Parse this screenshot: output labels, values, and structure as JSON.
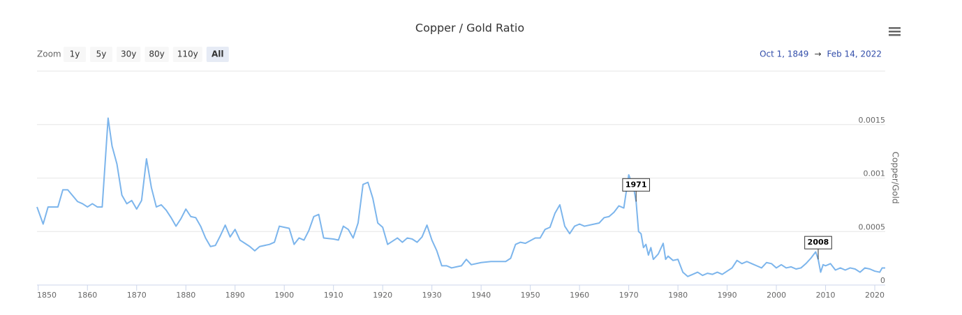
{
  "chart_data": {
    "type": "line",
    "title": "Copper / Gold Ratio",
    "zoom_label": "Zoom",
    "zoom_buttons": [
      "1y",
      "5y",
      "30y",
      "80y",
      "110y",
      "All"
    ],
    "zoom_selected": 5,
    "range_from": "Oct 1, 1849",
    "range_separator": "→",
    "range_to": "Feb 14, 2022",
    "y_axis_label": "Copper/Gold",
    "color": "#7cb5ec",
    "grid": true,
    "xlim": [
      1849.75,
      2022.12
    ],
    "xticks": [
      1850,
      1860,
      1870,
      1880,
      1890,
      1900,
      1910,
      1920,
      1930,
      1940,
      1950,
      1960,
      1970,
      1980,
      1990,
      2000,
      2010,
      2020
    ],
    "ylim": [
      0,
      0.002
    ],
    "yticks": [
      0,
      0.0005,
      0.001,
      0.0015
    ],
    "x": [
      1849.75,
      1851,
      1852,
      1854,
      1855,
      1856,
      1858,
      1859,
      1860,
      1861,
      1862,
      1863,
      1864.2,
      1865,
      1866,
      1867,
      1868,
      1869,
      1870,
      1871,
      1872,
      1873,
      1874,
      1875,
      1876,
      1877,
      1878,
      1879,
      1880,
      1881,
      1882,
      1883,
      1884,
      1885,
      1886,
      1887,
      1888,
      1889,
      1890,
      1891,
      1892,
      1893,
      1894,
      1895,
      1897,
      1898,
      1899,
      1900,
      1901,
      1902,
      1903,
      1904,
      1905,
      1906,
      1907,
      1908,
      1910,
      1911,
      1912,
      1913,
      1914,
      1915,
      1916,
      1917,
      1918,
      1919,
      1920,
      1921,
      1922,
      1923,
      1924,
      1925,
      1926,
      1927,
      1928,
      1929,
      1930,
      1931,
      1932,
      1933,
      1934,
      1935,
      1936,
      1937,
      1938,
      1940,
      1942,
      1945,
      1946,
      1947,
      1948,
      1949,
      1951,
      1952,
      1953,
      1954,
      1955,
      1956,
      1957,
      1958,
      1959,
      1960,
      1961,
      1963,
      1964,
      1965,
      1966,
      1967,
      1968,
      1969,
      1970,
      1971,
      1971.5,
      1972,
      1972.5,
      1973,
      1973.5,
      1974,
      1974.5,
      1975,
      1976,
      1977,
      1977.5,
      1978,
      1979,
      1980,
      1981,
      1982,
      1983,
      1984,
      1985,
      1986,
      1987,
      1988,
      1989,
      1991,
      1992,
      1993,
      1994,
      1995,
      1996,
      1997,
      1998,
      1999,
      2000,
      2001,
      2002,
      2003,
      2004,
      2005,
      2006,
      2007,
      2008,
      2008.5,
      2009,
      2009.5,
      2010,
      2011,
      2012,
      2013,
      2014,
      2015,
      2016,
      2017,
      2018,
      2019,
      2020,
      2021,
      2021.5,
      2022.12
    ],
    "values": [
      0.00073,
      0.00057,
      0.00073,
      0.00073,
      0.00089,
      0.00089,
      0.00078,
      0.00076,
      0.00073,
      0.00076,
      0.00073,
      0.00073,
      0.00156,
      0.0013,
      0.00113,
      0.00084,
      0.00076,
      0.00079,
      0.00071,
      0.00079,
      0.00118,
      0.00091,
      0.00073,
      0.00075,
      0.0007,
      0.00063,
      0.00055,
      0.00062,
      0.00071,
      0.00064,
      0.00063,
      0.00055,
      0.00044,
      0.00036,
      0.00037,
      0.00046,
      0.00056,
      0.00045,
      0.00052,
      0.00042,
      0.00039,
      0.00036,
      0.00032,
      0.00036,
      0.00038,
      0.0004,
      0.00055,
      0.00054,
      0.00053,
      0.00038,
      0.00044,
      0.00042,
      0.00051,
      0.00064,
      0.00066,
      0.00044,
      0.00043,
      0.00042,
      0.00055,
      0.00052,
      0.00044,
      0.00058,
      0.00094,
      0.00096,
      0.00081,
      0.00058,
      0.00054,
      0.00038,
      0.00041,
      0.00044,
      0.0004,
      0.00044,
      0.00043,
      0.0004,
      0.00045,
      0.00056,
      0.00042,
      0.00032,
      0.00018,
      0.00018,
      0.00016,
      0.00017,
      0.00018,
      0.00024,
      0.00019,
      0.00021,
      0.00022,
      0.00022,
      0.00025,
      0.00038,
      0.0004,
      0.00039,
      0.00044,
      0.00044,
      0.00052,
      0.00054,
      0.00067,
      0.00075,
      0.00055,
      0.00048,
      0.00055,
      0.00057,
      0.00055,
      0.00057,
      0.00058,
      0.00063,
      0.00064,
      0.00068,
      0.00074,
      0.00072,
      0.00103,
      0.00091,
      0.00078,
      0.0005,
      0.00048,
      0.00035,
      0.00038,
      0.00028,
      0.00035,
      0.00024,
      0.00029,
      0.00039,
      0.00024,
      0.00027,
      0.00023,
      0.00024,
      0.00012,
      8e-05,
      0.0001,
      0.00012,
      9e-05,
      0.00011,
      0.0001,
      0.00012,
      0.0001,
      0.00016,
      0.00023,
      0.0002,
      0.00022,
      0.0002,
      0.00018,
      0.00016,
      0.00021,
      0.0002,
      0.00016,
      0.00019,
      0.00016,
      0.00017,
      0.00015,
      0.00016,
      0.0002,
      0.00025,
      0.00031,
      0.00024,
      0.00012,
      0.00019,
      0.00018,
      0.0002,
      0.00014,
      0.00016,
      0.00014,
      0.00016,
      0.00015,
      0.00012,
      0.00016,
      0.00015,
      0.00013,
      0.00012,
      0.00016,
      0.00016
    ],
    "annotations": [
      {
        "text": "1971",
        "x": 1971.5
      },
      {
        "text": "2008",
        "x": 2008.5
      }
    ]
  }
}
